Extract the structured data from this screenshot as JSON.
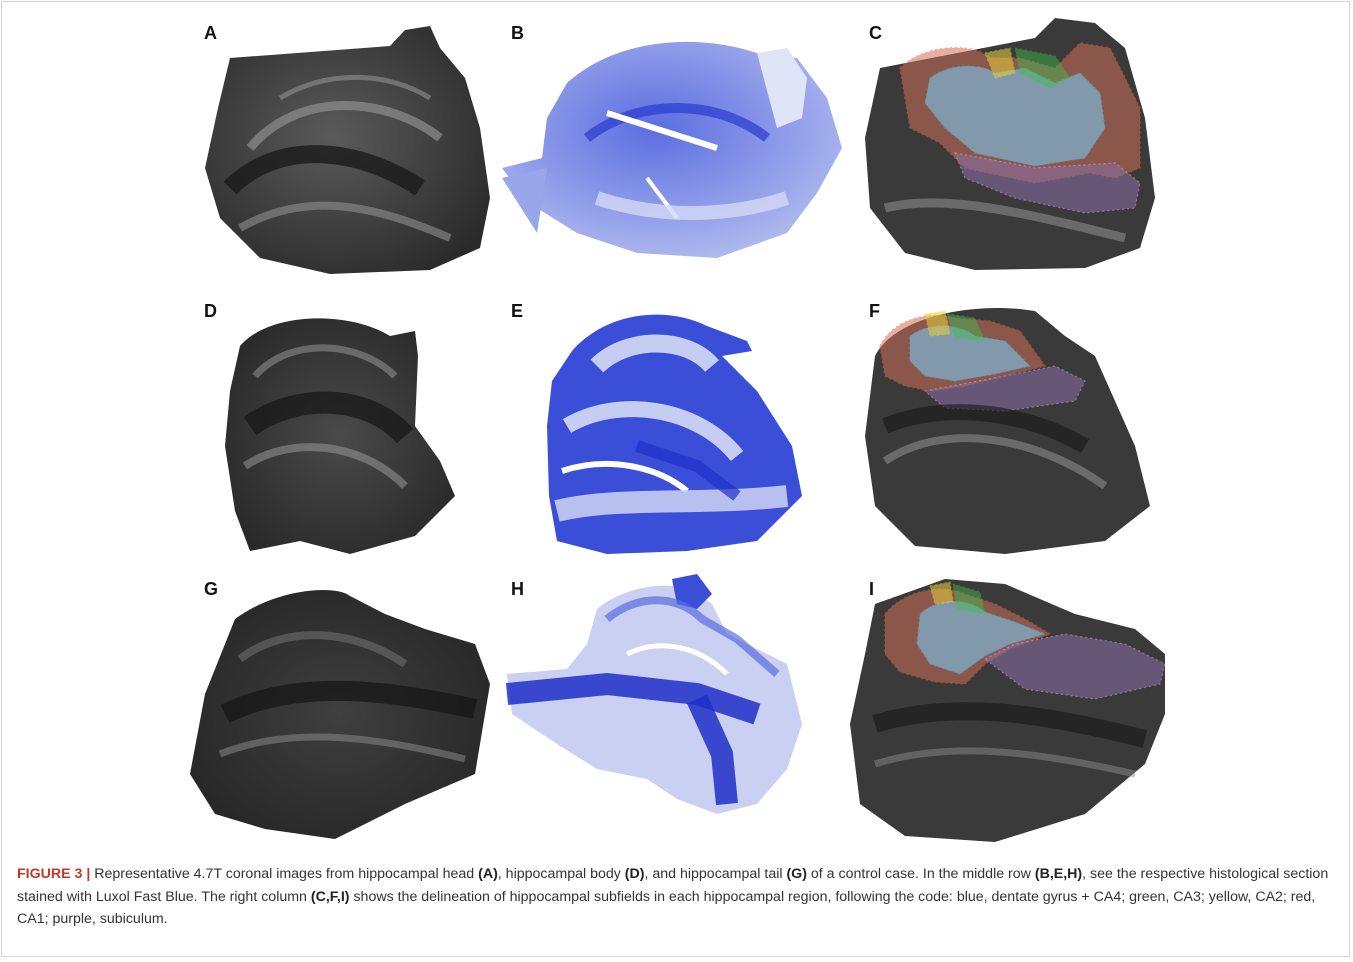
{
  "figure": {
    "panel_labels": [
      "A",
      "B",
      "C",
      "D",
      "E",
      "F",
      "G",
      "H",
      "I"
    ],
    "caption": {
      "figure_label": "FIGURE 3 |",
      "t1": " Representative 4.7T coronal images from hippocampal head ",
      "b1": "(A)",
      "t2": ", hippocampal body ",
      "b2": "(D)",
      "t3": ", and hippocampal tail ",
      "b3": "(G)",
      "t4": " of a control case. In the middle row ",
      "b4": "(B,E,H)",
      "t5": ", see the respective histological section stained with Luxol Fast Blue. The right column ",
      "b5": "(C,F,I)",
      "t6": " shows the delineation of hippocampal subfields in each hippocampal region, following the code: blue, dentate gyrus + CA4; green, CA3; yellow, CA2; red, CA1; purple, subiculum."
    },
    "colors": {
      "mri_dark": "#1e1e1e",
      "mri_light": "#9a9a9a",
      "lfb_dark": "#1f2fc8",
      "lfb_light": "#c9d0f2",
      "subfield_blue": "#7fb6d6",
      "subfield_green": "#3fbf4f",
      "subfield_yellow": "#e6d23a",
      "subfield_red": "#d0705a",
      "subfield_purple": "#8a6fa8"
    }
  }
}
